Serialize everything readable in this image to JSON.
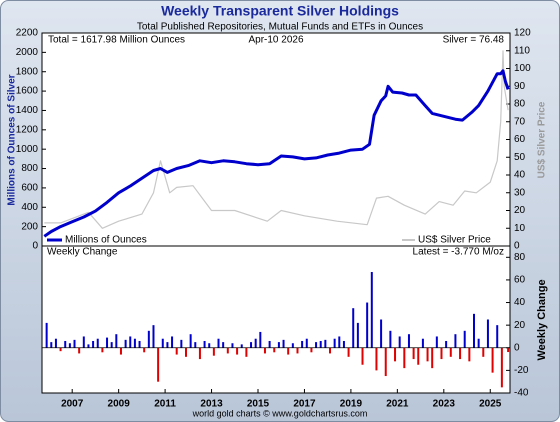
{
  "footer": "world gold charts © www.goldchartsrus.com",
  "chart_data": [
    {
      "type": "line",
      "title": "Weekly Transparent Silver Holdings",
      "subtitle": "Total Published Repositories, Mutual Funds and ETFs in Ounces",
      "annotations": [
        "Total = 1617.98 Million Ounces",
        "Apr-10  2026",
        "Silver = 76.48"
      ],
      "ylabel": "Millions of Ounces of Silver",
      "y2label": "US$ Silver Price",
      "xlim": [
        2006.2,
        2026.35
      ],
      "ylim": [
        0,
        2200
      ],
      "yticks": [
        0,
        200,
        400,
        600,
        800,
        1000,
        1200,
        1400,
        1600,
        1800,
        2000,
        2200
      ],
      "y2lim": [
        0,
        120
      ],
      "y2ticks": [
        0,
        10,
        20,
        30,
        40,
        50,
        60,
        70,
        80,
        90,
        100,
        110,
        120
      ],
      "legend": "bottom",
      "series": [
        {
          "name": "Millions of Ounces",
          "color": "#0000cc",
          "x": [
            2006.3,
            2006.6,
            2007.0,
            2007.5,
            2008.0,
            2008.5,
            2009.0,
            2009.5,
            2010.0,
            2010.5,
            2011.0,
            2011.3,
            2011.6,
            2012.0,
            2012.5,
            2013.0,
            2013.5,
            2014.0,
            2014.5,
            2015.0,
            2015.5,
            2016.0,
            2016.5,
            2017.0,
            2017.5,
            2018.0,
            2018.5,
            2019.0,
            2019.5,
            2020.0,
            2020.3,
            2020.5,
            2020.8,
            2021.0,
            2021.1,
            2021.3,
            2021.7,
            2022.0,
            2022.3,
            2022.7,
            2023.0,
            2023.5,
            2024.0,
            2024.3,
            2024.7,
            2025.0,
            2025.4,
            2025.8,
            2025.95,
            2026.05,
            2026.15,
            2026.27
          ],
          "values": [
            100,
            150,
            200,
            250,
            300,
            360,
            450,
            550,
            620,
            700,
            780,
            800,
            760,
            800,
            830,
            880,
            860,
            880,
            870,
            850,
            840,
            850,
            930,
            920,
            900,
            910,
            940,
            960,
            990,
            1000,
            1050,
            1350,
            1500,
            1550,
            1650,
            1590,
            1580,
            1560,
            1560,
            1450,
            1370,
            1340,
            1310,
            1300,
            1380,
            1450,
            1600,
            1780,
            1780,
            1810,
            1700,
            1617.98
          ]
        },
        {
          "name": "US$ Silver Price",
          "color": "#c8c8c8",
          "axis": "y2",
          "x": [
            2006.3,
            2007.0,
            2008.2,
            2008.8,
            2009.5,
            2010.5,
            2011.0,
            2011.3,
            2011.7,
            2012.0,
            2012.7,
            2013.5,
            2014.5,
            2015.9,
            2016.5,
            2017.5,
            2018.9,
            2020.2,
            2020.6,
            2021.1,
            2021.8,
            2022.7,
            2023.3,
            2023.9,
            2024.4,
            2024.9,
            2025.5,
            2025.8,
            2025.95,
            2026.05,
            2026.1,
            2026.27
          ],
          "values": [
            13,
            13,
            19,
            10,
            14,
            18,
            30,
            48,
            30,
            33,
            34,
            20,
            20,
            14,
            20,
            17,
            14,
            12,
            27,
            28,
            23,
            18,
            25,
            23,
            31,
            30,
            36,
            48,
            70,
            110,
            90,
            76.48
          ]
        }
      ]
    },
    {
      "type": "bar",
      "title": "Weekly Change",
      "annotation": "Latest = -3.770 M/oz",
      "ylabel": "Weekly Change",
      "color": "#0000cc",
      "negative_color": "#e00000",
      "xlim": [
        2006.2,
        2026.35
      ],
      "xticks": [
        {
          "value": 2007.5,
          "label": "2007"
        },
        {
          "value": 2009.5,
          "label": "2009"
        },
        {
          "value": 2011.5,
          "label": "2011"
        },
        {
          "value": 2013.5,
          "label": "2013"
        },
        {
          "value": 2015.5,
          "label": "2015"
        },
        {
          "value": 2017.5,
          "label": "2017"
        },
        {
          "value": 2019.5,
          "label": "2019"
        },
        {
          "value": 2021.5,
          "label": "2021"
        },
        {
          "value": 2023.5,
          "label": "2023"
        },
        {
          "value": 2025.5,
          "label": "2025"
        }
      ],
      "ylim": [
        -40,
        90
      ],
      "yticks": [
        -40,
        -20,
        0,
        20,
        40,
        60,
        80
      ],
      "x": [
        2006.4,
        2006.6,
        2006.8,
        2007.0,
        2007.2,
        2007.4,
        2007.6,
        2007.8,
        2008.0,
        2008.2,
        2008.4,
        2008.6,
        2008.8,
        2009.0,
        2009.2,
        2009.4,
        2009.6,
        2009.8,
        2010.0,
        2010.2,
        2010.4,
        2010.6,
        2010.8,
        2011.0,
        2011.2,
        2011.4,
        2011.6,
        2011.8,
        2012.0,
        2012.2,
        2012.4,
        2012.6,
        2012.8,
        2013.0,
        2013.2,
        2013.4,
        2013.6,
        2013.8,
        2014.0,
        2014.2,
        2014.4,
        2014.6,
        2014.8,
        2015.0,
        2015.2,
        2015.4,
        2015.6,
        2015.8,
        2016.0,
        2016.2,
        2016.4,
        2016.6,
        2016.8,
        2017.0,
        2017.2,
        2017.4,
        2017.6,
        2017.8,
        2018.0,
        2018.2,
        2018.4,
        2018.6,
        2018.8,
        2019.0,
        2019.2,
        2019.4,
        2019.6,
        2019.8,
        2020.0,
        2020.2,
        2020.4,
        2020.6,
        2020.8,
        2021.0,
        2021.2,
        2021.4,
        2021.6,
        2021.8,
        2022.0,
        2022.2,
        2022.4,
        2022.6,
        2022.8,
        2023.0,
        2023.2,
        2023.4,
        2023.6,
        2023.8,
        2024.0,
        2024.2,
        2024.4,
        2024.6,
        2024.8,
        2025.0,
        2025.2,
        2025.4,
        2025.6,
        2025.8,
        2026.0,
        2026.27
      ],
      "values": [
        22,
        5,
        8,
        -3,
        6,
        4,
        7,
        -5,
        10,
        3,
        6,
        8,
        -4,
        9,
        5,
        12,
        -6,
        7,
        10,
        8,
        6,
        -4,
        15,
        20,
        -30,
        8,
        5,
        10,
        -6,
        7,
        -8,
        12,
        5,
        -10,
        6,
        4,
        -7,
        8,
        5,
        -5,
        4,
        -6,
        3,
        -8,
        5,
        8,
        14,
        -5,
        6,
        -4,
        5,
        7,
        -6,
        4,
        -5,
        6,
        8,
        -4,
        5,
        6,
        7,
        -5,
        8,
        10,
        6,
        -8,
        35,
        22,
        -15,
        40,
        67,
        -20,
        25,
        -25,
        15,
        -12,
        10,
        -18,
        12,
        -10,
        -15,
        8,
        -12,
        -18,
        10,
        -10,
        6,
        -8,
        12,
        -10,
        15,
        -12,
        30,
        8,
        -8,
        25,
        -22,
        20,
        -35,
        -3.77
      ]
    }
  ]
}
